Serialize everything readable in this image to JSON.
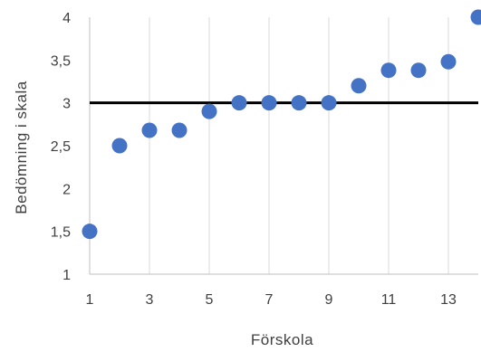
{
  "chart_data": {
    "type": "scatter",
    "title": "",
    "xlabel": "Förskola",
    "ylabel": "Bedömning i skala",
    "xlim": [
      1,
      14
    ],
    "ylim": [
      1,
      4
    ],
    "x_ticks": [
      1,
      3,
      5,
      7,
      9,
      11,
      13
    ],
    "x_tick_labels": [
      "1",
      "3",
      "5",
      "7",
      "9",
      "11",
      "13"
    ],
    "y_ticks": [
      1,
      1.5,
      2,
      2.5,
      3,
      3.5,
      4
    ],
    "y_tick_labels": [
      "1",
      "1,5",
      "2",
      "2,5",
      "3",
      "3,5",
      "4"
    ],
    "grid": "vertical",
    "reference_line": {
      "y": 3,
      "color": "#000000"
    },
    "marker_color": "#4472C4",
    "points": [
      {
        "x": 1,
        "y": 1.5
      },
      {
        "x": 2,
        "y": 2.5
      },
      {
        "x": 3,
        "y": 2.68
      },
      {
        "x": 4,
        "y": 2.68
      },
      {
        "x": 5,
        "y": 2.9
      },
      {
        "x": 6,
        "y": 3.0
      },
      {
        "x": 7,
        "y": 3.0
      },
      {
        "x": 8,
        "y": 3.0
      },
      {
        "x": 9,
        "y": 3.0
      },
      {
        "x": 10,
        "y": 3.2
      },
      {
        "x": 11,
        "y": 3.38
      },
      {
        "x": 12,
        "y": 3.38
      },
      {
        "x": 13,
        "y": 3.48
      },
      {
        "x": 14,
        "y": 4.0
      }
    ]
  }
}
